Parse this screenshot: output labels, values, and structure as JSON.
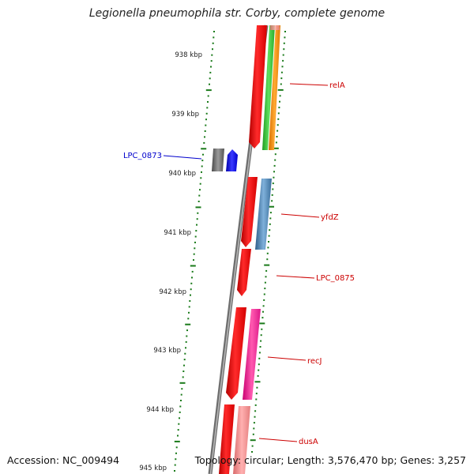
{
  "title": "Legionella pneumophila str. Corby, complete genome",
  "footer": {
    "accession": "Accession: NC_009494",
    "summary": "Topology: circular; Length: 3,576,470 bp; Genes: 3,257"
  },
  "scale_labels": [
    "938 kbp",
    "939 kbp",
    "940 kbp",
    "941 kbp",
    "942 kbp",
    "943 kbp",
    "944 kbp",
    "945 kbp"
  ],
  "gene_labels": [
    {
      "text": "LPC_0873",
      "color": "#0000cc"
    },
    {
      "text": "relA",
      "color": "#cc0000"
    },
    {
      "text": "yfdZ",
      "color": "#cc0000"
    },
    {
      "text": "LPC_0875",
      "color": "#cc0000"
    },
    {
      "text": "recJ",
      "color": "#cc0000"
    },
    {
      "text": "dusA",
      "color": "#cc0000"
    }
  ],
  "colors": {
    "tick": "#1a7a1a",
    "backbone": "#8c8c8c",
    "gene_red": "#ff0000",
    "gene_green": "#33cc33",
    "gene_orange": "#ff8c00",
    "gene_steelblue": "#4682b4",
    "gene_magenta": "#ff1493",
    "gene_salmon": "#f08080",
    "gene_blue": "#0000ee",
    "gene_gray": "#696969",
    "label_red": "#cc0000",
    "label_blue": "#0000cc"
  }
}
